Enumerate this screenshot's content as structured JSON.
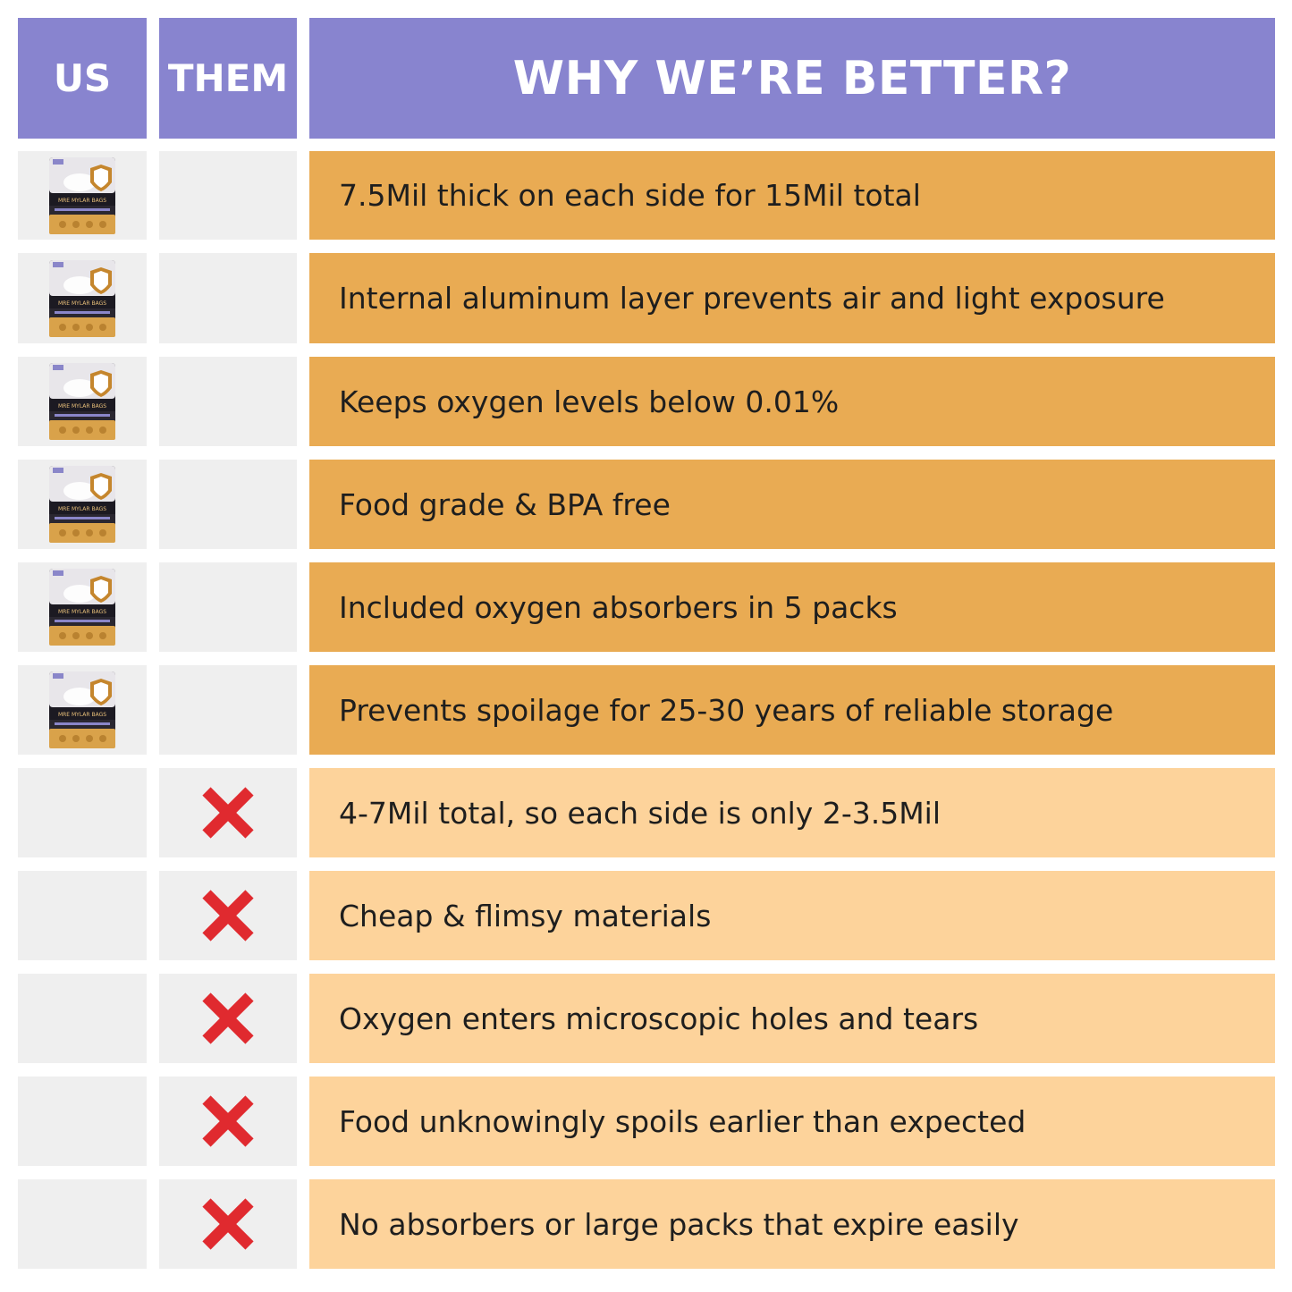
{
  "header": {
    "us": "US",
    "them": "THEM",
    "why": "WHY WE’RE BETTER?"
  },
  "colors": {
    "header_bg": "#8884cf",
    "us_row_bg": "#e9ab53",
    "them_row_bg": "#fdd39b",
    "side_cell_bg": "#efefef",
    "x_mark": "#e02a2f"
  },
  "bag_label": "MRE MYLAR BAGS",
  "rows_us": [
    {
      "text": "7.5Mil thick on each side for 15Mil total",
      "marker": "product-bag-icon"
    },
    {
      "text": "Internal aluminum layer prevents air and light exposure",
      "marker": "product-bag-icon"
    },
    {
      "text": "Keeps oxygen levels below 0.01%",
      "marker": "product-bag-icon"
    },
    {
      "text": "Food grade & BPA free",
      "marker": "product-bag-icon"
    },
    {
      "text": "Included oxygen absorbers in 5 packs",
      "marker": "product-bag-icon"
    },
    {
      "text": "Prevents spoilage for 25-30 years of reliable storage",
      "marker": "product-bag-icon"
    }
  ],
  "rows_them": [
    {
      "text": "4-7Mil total, so each side is only 2-3.5Mil",
      "marker": "x-icon"
    },
    {
      "text": "Cheap & flimsy materials",
      "marker": "x-icon"
    },
    {
      "text": "Oxygen enters microscopic holes and tears",
      "marker": "x-icon"
    },
    {
      "text": "Food unknowingly spoils earlier than expected",
      "marker": "x-icon"
    },
    {
      "text": "No absorbers or large packs that expire easily",
      "marker": "x-icon"
    }
  ]
}
